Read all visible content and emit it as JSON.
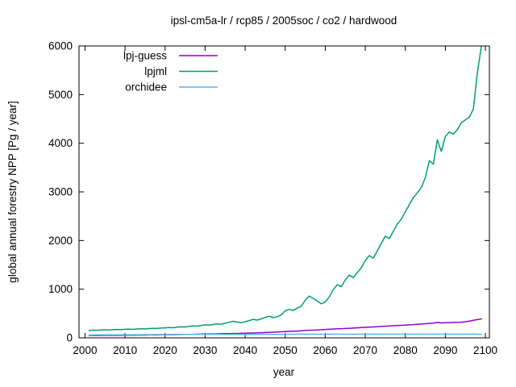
{
  "chart_data": {
    "type": "line",
    "title": "ipsl-cm5a-lr / rcp85 / 2005soc / co2 / hardwood",
    "xlabel": "year",
    "ylabel": "global annual forestry NPP [Pg / year]",
    "xlim": [
      1998.5,
      2101
    ],
    "ylim": [
      0,
      6000
    ],
    "xticks": [
      2000,
      2010,
      2020,
      2030,
      2040,
      2050,
      2060,
      2070,
      2080,
      2090,
      2100
    ],
    "yticks": [
      0,
      1000,
      2000,
      3000,
      4000,
      5000,
      6000
    ],
    "grid": false,
    "legend_position": "top-left-inside",
    "background_color": "#ffffff",
    "axis_color": "#000000",
    "x": [
      2001,
      2002,
      2003,
      2004,
      2005,
      2006,
      2007,
      2008,
      2009,
      2010,
      2011,
      2012,
      2013,
      2014,
      2015,
      2016,
      2017,
      2018,
      2019,
      2020,
      2021,
      2022,
      2023,
      2024,
      2025,
      2026,
      2027,
      2028,
      2029,
      2030,
      2031,
      2032,
      2033,
      2034,
      2035,
      2036,
      2037,
      2038,
      2039,
      2040,
      2041,
      2042,
      2043,
      2044,
      2045,
      2046,
      2047,
      2048,
      2049,
      2050,
      2051,
      2052,
      2053,
      2054,
      2055,
      2056,
      2057,
      2058,
      2059,
      2060,
      2061,
      2062,
      2063,
      2064,
      2065,
      2066,
      2067,
      2068,
      2069,
      2070,
      2071,
      2072,
      2073,
      2074,
      2075,
      2076,
      2077,
      2078,
      2079,
      2080,
      2081,
      2082,
      2083,
      2084,
      2085,
      2086,
      2087,
      2088,
      2089,
      2090,
      2091,
      2092,
      2093,
      2094,
      2095,
      2096,
      2097,
      2098,
      2099
    ],
    "series": [
      {
        "name": "lpj-guess",
        "color": "#9400d3",
        "values": [
          50,
          52,
          48,
          52,
          50,
          53,
          51,
          54,
          52,
          55,
          56,
          54,
          57,
          58,
          56,
          59,
          60,
          58,
          62,
          63,
          65,
          64,
          67,
          68,
          70,
          72,
          71,
          74,
          76,
          78,
          80,
          79,
          82,
          84,
          86,
          88,
          90,
          89,
          92,
          95,
          98,
          100,
          103,
          106,
          110,
          113,
          116,
          120,
          124,
          128,
          132,
          136,
          140,
          145,
          150,
          155,
          158,
          162,
          166,
          172,
          176,
          180,
          185,
          188,
          192,
          196,
          200,
          205,
          210,
          215,
          220,
          224,
          228,
          233,
          238,
          243,
          248,
          252,
          257,
          262,
          268,
          272,
          278,
          284,
          290,
          296,
          300,
          318,
          305,
          310,
          312,
          315,
          318,
          322,
          330,
          345,
          360,
          375,
          390
        ]
      },
      {
        "name": "lpjml",
        "color": "#009e73",
        "values": [
          150,
          158,
          154,
          162,
          165,
          160,
          168,
          172,
          168,
          175,
          178,
          174,
          182,
          186,
          182,
          190,
          195,
          192,
          200,
          205,
          212,
          208,
          218,
          226,
          222,
          235,
          245,
          240,
          255,
          265,
          260,
          275,
          285,
          280,
          300,
          320,
          340,
          325,
          310,
          330,
          355,
          380,
          365,
          390,
          420,
          445,
          415,
          435,
          470,
          555,
          585,
          560,
          610,
          650,
          770,
          860,
          810,
          755,
          700,
          735,
          840,
          990,
          1090,
          1050,
          1190,
          1290,
          1240,
          1340,
          1440,
          1590,
          1690,
          1640,
          1790,
          1940,
          2090,
          2040,
          2190,
          2340,
          2440,
          2590,
          2740,
          2880,
          2980,
          3090,
          3290,
          3640,
          3570,
          4070,
          3830,
          4140,
          4230,
          4190,
          4280,
          4420,
          4480,
          4540,
          4700,
          5450,
          6000
        ]
      },
      {
        "name": "orchidee",
        "color": "#56b4e9",
        "values": [
          58,
          60,
          59,
          61,
          60,
          62,
          61,
          63,
          62,
          64,
          63,
          64,
          65,
          64,
          66,
          65,
          66,
          67,
          66,
          68,
          67,
          68,
          69,
          68,
          70,
          69,
          70,
          71,
          70,
          71,
          70,
          71,
          72,
          71,
          72,
          71,
          72,
          73,
          72,
          73,
          72,
          73,
          72,
          73,
          74,
          73,
          72,
          70,
          71,
          73,
          74,
          73,
          74,
          75,
          74,
          75,
          74,
          75,
          74,
          75,
          74,
          75,
          74,
          75,
          74,
          75,
          74,
          75,
          74,
          75,
          74,
          75,
          74,
          75,
          74,
          75,
          74,
          75,
          74,
          75,
          74,
          75,
          74,
          75,
          74,
          75,
          74,
          75,
          74,
          75,
          74,
          75,
          74,
          75,
          74,
          75,
          74,
          73,
          72
        ]
      }
    ]
  }
}
